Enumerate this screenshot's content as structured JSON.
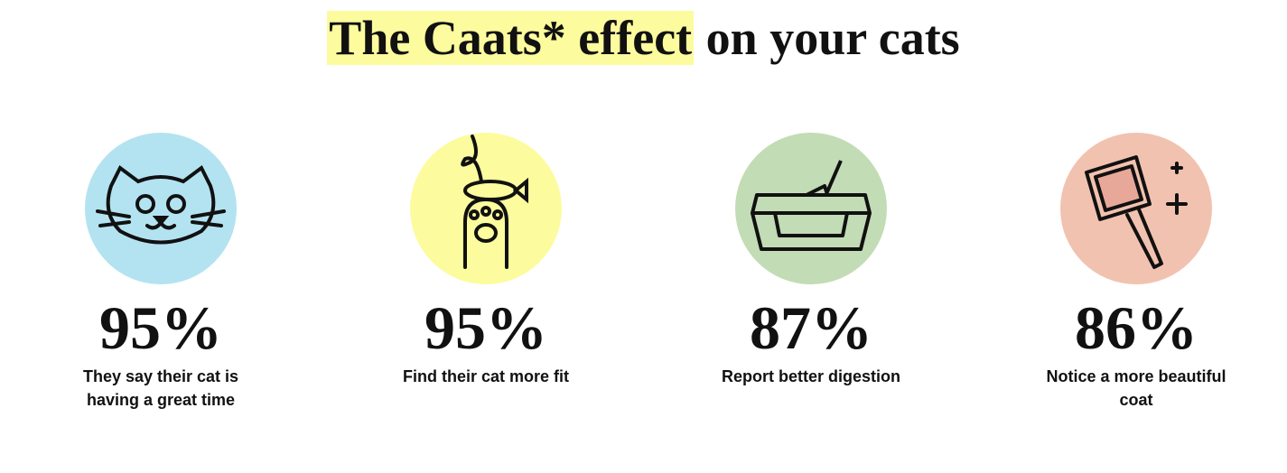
{
  "header": {
    "title_highlight": "The Caats* effect",
    "title_rest": "on your cats"
  },
  "stats": [
    {
      "value": "95%",
      "label": "They say their cat is having a great time"
    },
    {
      "value": "95%",
      "label": "Find their cat more fit"
    },
    {
      "value": "87%",
      "label": "Report better digestion"
    },
    {
      "value": "86%",
      "label": "Notice a more beautiful coat"
    }
  ]
}
